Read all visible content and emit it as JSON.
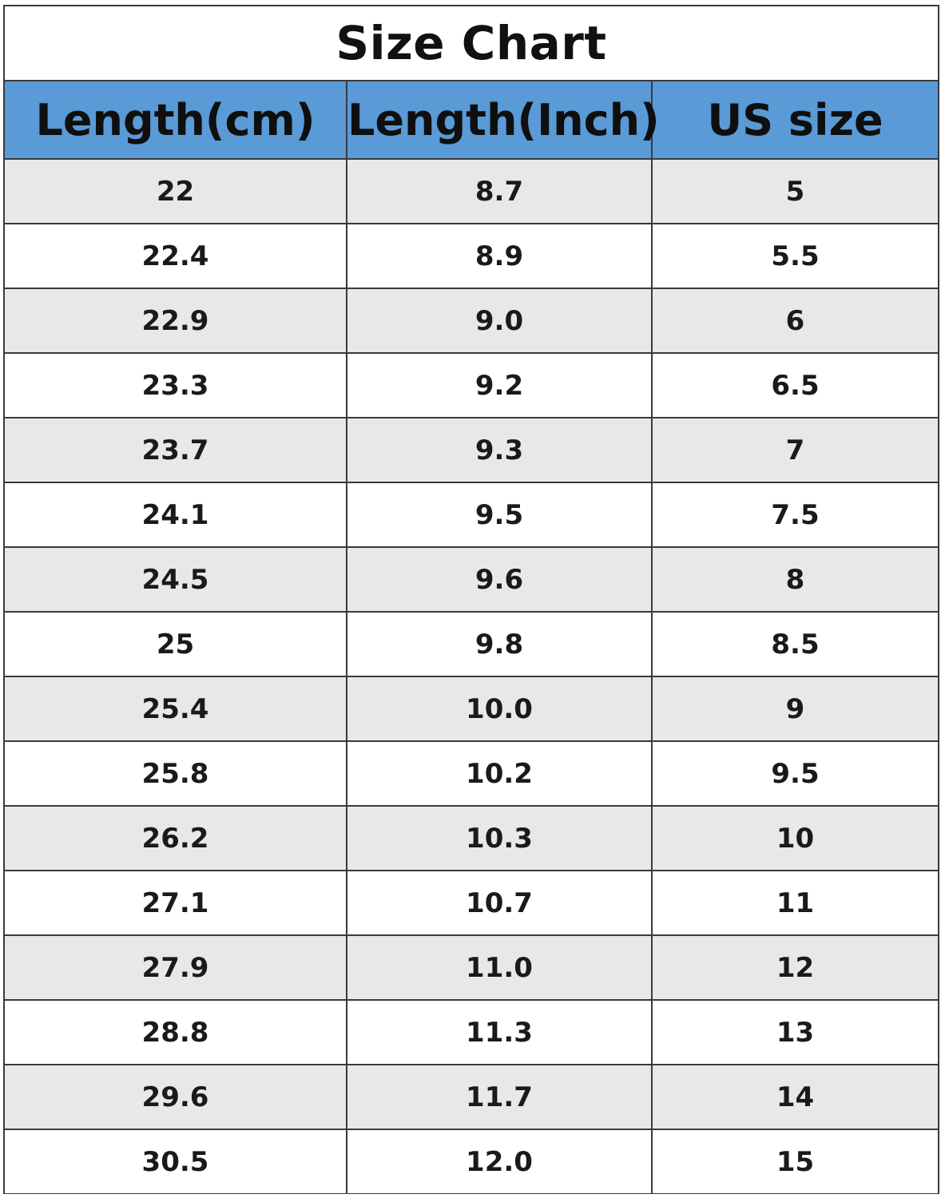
{
  "chart_data": {
    "type": "table",
    "title": "Size Chart",
    "columns": [
      "Length(cm)",
      "Length(Inch)",
      "US size"
    ],
    "rows": [
      [
        "22",
        "8.7",
        "5"
      ],
      [
        "22.4",
        "8.9",
        "5.5"
      ],
      [
        "22.9",
        "9.0",
        "6"
      ],
      [
        "23.3",
        "9.2",
        "6.5"
      ],
      [
        "23.7",
        "9.3",
        "7"
      ],
      [
        "24.1",
        "9.5",
        "7.5"
      ],
      [
        "24.5",
        "9.6",
        "8"
      ],
      [
        "25",
        "9.8",
        "8.5"
      ],
      [
        "25.4",
        "10.0",
        "9"
      ],
      [
        "25.8",
        "10.2",
        "9.5"
      ],
      [
        "26.2",
        "10.3",
        "10"
      ],
      [
        "27.1",
        "10.7",
        "11"
      ],
      [
        "27.9",
        "11.0",
        "12"
      ],
      [
        "28.8",
        "11.3",
        "13"
      ],
      [
        "29.6",
        "11.7",
        "14"
      ],
      [
        "30.5",
        "12.0",
        "15"
      ]
    ]
  },
  "colors": {
    "header_bg": "#5a9ad6",
    "row_alt_bg": "#e8e8e8",
    "border": "#3a3a3a"
  }
}
